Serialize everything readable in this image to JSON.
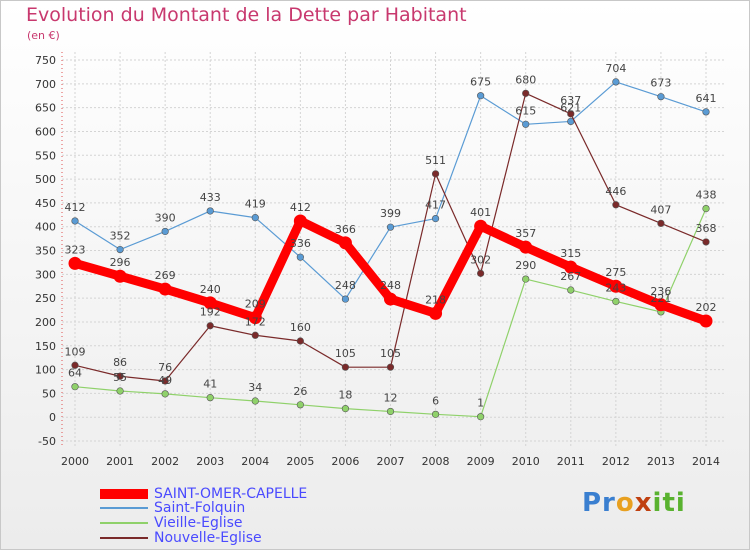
{
  "chart_data": {
    "type": "line",
    "title": "Evolution du Montant de la Dette par Habitant",
    "unit_label": "(en €)",
    "x": [
      "2000",
      "2001",
      "2002",
      "2003",
      "2004",
      "2005",
      "2006",
      "2007",
      "2008",
      "2009",
      "2010",
      "2011",
      "2012",
      "2013",
      "2014"
    ],
    "ylim": [
      -50,
      750
    ],
    "yticks": [
      -50,
      0,
      50,
      100,
      150,
      200,
      250,
      300,
      350,
      400,
      450,
      500,
      550,
      600,
      650,
      700,
      750
    ],
    "grid": true,
    "legend_position": "bottom-left",
    "series": [
      {
        "name": "SAINT-OMER-CAPELLE",
        "color": "#ff0000",
        "bold": true,
        "values": [
          323,
          296,
          269,
          240,
          209,
          412,
          366,
          248,
          218,
          401,
          357,
          315,
          275,
          236,
          202
        ]
      },
      {
        "name": "Saint-Folquin",
        "color": "#5a9bd4",
        "values": [
          412,
          352,
          390,
          433,
          419,
          336,
          248,
          399,
          417,
          675,
          615,
          621,
          704,
          673,
          641
        ]
      },
      {
        "name": "Vieille-Eglise",
        "color": "#8fd16a",
        "values": [
          64,
          55,
          49,
          41,
          34,
          26,
          18,
          12,
          6,
          1,
          290,
          267,
          243,
          221,
          438
        ]
      },
      {
        "name": "Nouvelle-Eglise",
        "color": "#7a2a2a",
        "values": [
          109,
          86,
          76,
          192,
          172,
          160,
          105,
          105,
          511,
          302,
          680,
          637,
          446,
          407,
          368
        ]
      }
    ]
  },
  "logo": {
    "text": "Proxiti"
  }
}
